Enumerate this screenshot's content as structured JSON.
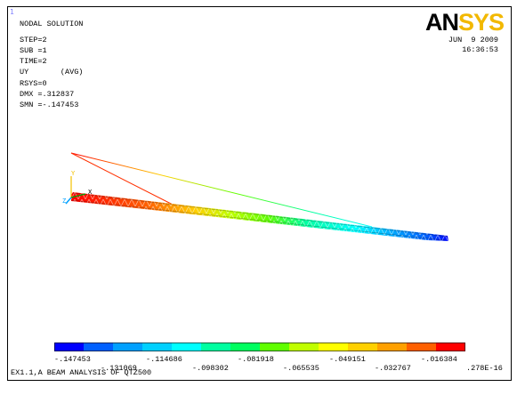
{
  "window_number": "1",
  "logo": {
    "part1": "AN",
    "part2": "SYS"
  },
  "info": {
    "title": "NODAL SOLUTION",
    "step": "STEP=2",
    "sub": "SUB =1",
    "time": "TIME=2",
    "item": "UY       (AVG)",
    "rsys": "RSYS=0",
    "dmx": "DMX =.312837",
    "smn": "SMN =-.147453"
  },
  "date": {
    "line1": "JUN  9 2009",
    "line2": "16:36:53"
  },
  "axis": {
    "y": "Y",
    "x": "X",
    "z": "Z"
  },
  "legend": {
    "colors": [
      "#0000ff",
      "#0060ff",
      "#00a0ff",
      "#00d0ff",
      "#00ffff",
      "#00ffa0",
      "#00ff60",
      "#60ff00",
      "#c0ff00",
      "#ffff00",
      "#ffd000",
      "#ffa000",
      "#ff6000",
      "#ff0000"
    ],
    "labels_top": [
      "-.147453",
      "-.114686",
      "-.081918",
      "-.049151",
      "-.016384"
    ],
    "labels_bottom": [
      "-.131069",
      "-.098302",
      "-.065535",
      "-.032767",
      ".278E-16"
    ]
  },
  "footer": "EX1.1,A BEAM ANALYSIS OF QTZ500"
}
